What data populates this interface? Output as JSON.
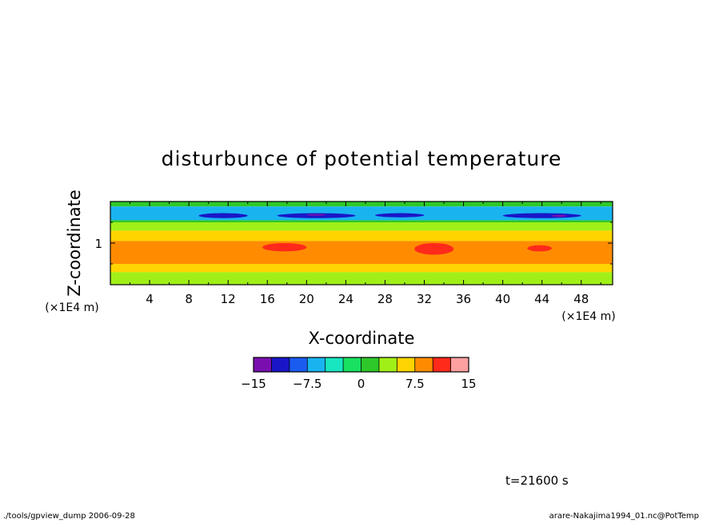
{
  "chart_data": {
    "type": "heatmap",
    "title": "disturbunce of potential temperature",
    "xlabel": "X-coordinate",
    "ylabel": "Z-coordinate",
    "xunit": "(×1E4 m)",
    "yunit": "(×1E4 m)",
    "x_range": [
      0,
      51.2
    ],
    "y_range": [
      0,
      2.0
    ],
    "x_ticks": [
      4,
      8,
      12,
      16,
      20,
      24,
      28,
      32,
      36,
      40,
      44,
      48
    ],
    "x_tick_labels": [
      "4",
      "8",
      "12",
      "16",
      "20",
      "24",
      "28",
      "32",
      "36",
      "40",
      "44",
      "48"
    ],
    "y_ticks": [
      1
    ],
    "y_tick_labels": [
      "1"
    ],
    "colorbar": {
      "min": -15,
      "max": 15,
      "levels": [
        -15,
        -12.5,
        -10,
        -7.5,
        -5,
        -2.5,
        0,
        2.5,
        5,
        7.5,
        10,
        12.5,
        15
      ],
      "labels": [
        "−15",
        "−7.5",
        "0",
        "7.5",
        "15"
      ],
      "label_values": [
        -15,
        -7.5,
        0,
        7.5,
        15
      ],
      "colors": [
        "#7a0fb0",
        "#1a16c8",
        "#1a5cf0",
        "#19b4f0",
        "#18e6c0",
        "#18e060",
        "#2ec82a",
        "#a0f018",
        "#ffd400",
        "#ff8c00",
        "#ff2a1a",
        "#ffa0a0"
      ]
    },
    "bands": [
      {
        "z": [
          1.88,
          2.0
        ],
        "value": 0.5
      },
      {
        "z": [
          1.55,
          1.88
        ],
        "value": -7.5
      },
      {
        "z": [
          1.5,
          1.55
        ],
        "value": 0.5
      },
      {
        "z": [
          1.3,
          1.5
        ],
        "value": 3
      },
      {
        "z": [
          1.05,
          1.3
        ],
        "value": 5
      },
      {
        "z": [
          0.5,
          1.05
        ],
        "value": 8
      },
      {
        "z": [
          0.3,
          0.5
        ],
        "value": 5
      },
      {
        "z": [
          0.0,
          0.3
        ],
        "value": 3
      }
    ],
    "features": [
      {
        "x": [
          9,
          14
        ],
        "z": [
          1.6,
          1.72
        ],
        "value": -11
      },
      {
        "x": [
          17,
          25
        ],
        "z": [
          1.6,
          1.72
        ],
        "value": -11
      },
      {
        "x": [
          20,
          22
        ],
        "z": [
          1.66,
          1.7
        ],
        "value": -13.5
      },
      {
        "x": [
          27,
          32
        ],
        "z": [
          1.62,
          1.72
        ],
        "value": -11
      },
      {
        "x": [
          40,
          48
        ],
        "z": [
          1.6,
          1.72
        ],
        "value": -11
      },
      {
        "x": [
          45,
          46.5
        ],
        "z": [
          1.63,
          1.68
        ],
        "value": -13.5
      },
      {
        "x": [
          15.5,
          20
        ],
        "z": [
          0.8,
          1.0
        ],
        "value": 11
      },
      {
        "x": [
          31,
          35
        ],
        "z": [
          0.72,
          1.0
        ],
        "value": 11
      },
      {
        "x": [
          42.5,
          45
        ],
        "z": [
          0.8,
          0.95
        ],
        "value": 11
      }
    ]
  },
  "annotations": {
    "time": "t=21600 s",
    "footer_left": "./tools/gpview_dump  2006-09-28",
    "footer_right": "arare-Nakajima1994_01.nc@PotTemp"
  }
}
